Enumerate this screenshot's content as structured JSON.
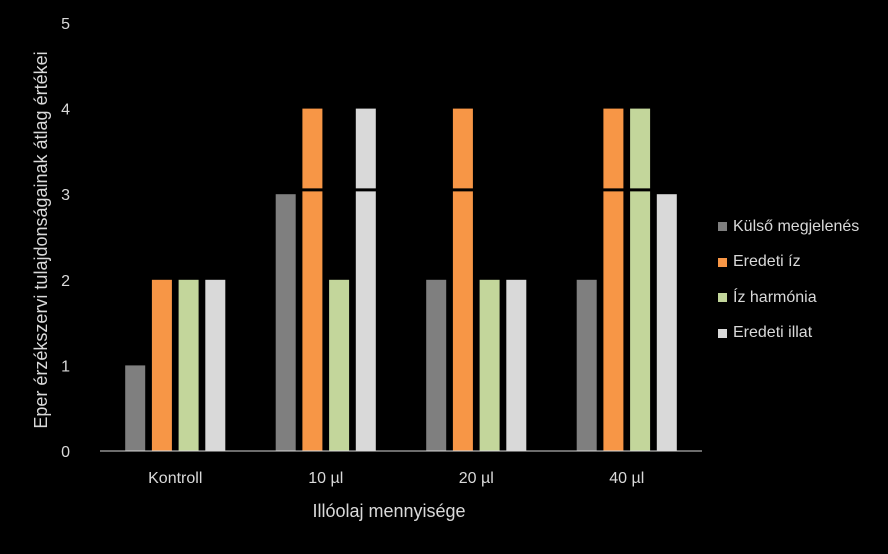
{
  "chart_data": {
    "type": "bar",
    "title": "",
    "xlabel": "Illóolaj mennyisége",
    "ylabel": "Eper érzékszervi tulajdonságainak átlag értékei",
    "categories": [
      "Kontroll",
      "10 µl",
      "20 µl",
      "40 µl"
    ],
    "ylim": [
      0,
      5
    ],
    "yticks": [
      "0",
      "1",
      "2",
      "3",
      "4",
      "5"
    ],
    "grid": false,
    "legend_position": "right",
    "series": [
      {
        "name": "Külső megjelenés",
        "color": "#7f7f7f",
        "values": [
          1,
          3,
          2,
          2
        ]
      },
      {
        "name": "Eredeti íz",
        "color": "#f79646",
        "values": [
          2,
          4,
          4,
          4
        ]
      },
      {
        "name": "Íz harmónia",
        "color": "#c3d69b",
        "values": [
          2,
          2,
          2,
          4
        ]
      },
      {
        "name": "Eredeti illat",
        "color": "#d9d9d9",
        "values": [
          2,
          4,
          2,
          3
        ]
      }
    ]
  },
  "colors": {
    "background": "#000000",
    "text": "#d9d9d9",
    "axis_line": "#d9d9d9",
    "reference_line": "#000000"
  }
}
